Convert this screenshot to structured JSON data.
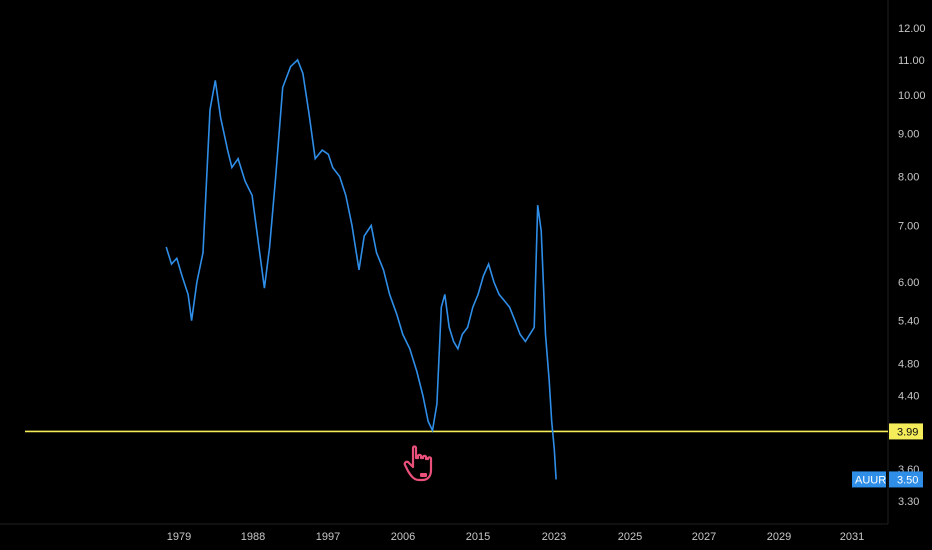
{
  "chart_data": {
    "type": "line",
    "scale": "log",
    "grid": false,
    "colors": {
      "background": "#000000",
      "series": "#2f8ee8",
      "level_line": "#f5ec5a",
      "level_badge": "#f5ec5a",
      "series_badge": "#2f8ee8",
      "axis_text": "#c7c7c7",
      "cursor_icon": "#e9507a"
    },
    "x_ticks": [
      "1979",
      "1988",
      "1997",
      "2006",
      "2015",
      "2023",
      "2025",
      "2027",
      "2029",
      "2031"
    ],
    "y_ticks": [
      "12.00",
      "11.00",
      "10.00",
      "9.00",
      "8.00",
      "7.00",
      "6.00",
      "5.40",
      "4.80",
      "4.40",
      "3.60",
      "3.30"
    ],
    "ylim": [
      3.2,
      12.5
    ],
    "horizontal_line": {
      "value": 3.99,
      "label": "3.99"
    },
    "series": [
      {
        "name": "AUUR",
        "last_value_label": "3.50",
        "points": [
          [
            "1978.0",
            6.6
          ],
          [
            "1978.6",
            6.3
          ],
          [
            "1979.2",
            6.4
          ],
          [
            "1979.8",
            6.1
          ],
          [
            "1980.5",
            5.8
          ],
          [
            "1980.9",
            5.4
          ],
          [
            "1981.5",
            6.0
          ],
          [
            "1982.2",
            6.5
          ],
          [
            "1983.0",
            9.6
          ],
          [
            "1983.6",
            10.4
          ],
          [
            "1984.2",
            9.4
          ],
          [
            "1985.0",
            8.6
          ],
          [
            "1985.5",
            8.2
          ],
          [
            "1986.2",
            8.4
          ],
          [
            "1987.0",
            7.9
          ],
          [
            "1987.8",
            7.6
          ],
          [
            "1988.5",
            6.7
          ],
          [
            "1989.2",
            5.9
          ],
          [
            "1989.8",
            6.6
          ],
          [
            "1990.5",
            8.0
          ],
          [
            "1991.3",
            10.2
          ],
          [
            "1992.2",
            10.8
          ],
          [
            "1993.0",
            11.0
          ],
          [
            "1993.6",
            10.6
          ],
          [
            "1994.3",
            9.5
          ],
          [
            "1995.0",
            8.4
          ],
          [
            "1995.8",
            8.6
          ],
          [
            "1996.5",
            8.5
          ],
          [
            "1997.0",
            8.2
          ],
          [
            "1997.8",
            8.0
          ],
          [
            "1998.5",
            7.6
          ],
          [
            "1999.2",
            7.0
          ],
          [
            "2000.0",
            6.2
          ],
          [
            "2000.6",
            6.8
          ],
          [
            "2001.4",
            7.0
          ],
          [
            "2002.0",
            6.5
          ],
          [
            "2002.8",
            6.2
          ],
          [
            "2003.5",
            5.8
          ],
          [
            "2004.3",
            5.5
          ],
          [
            "2005.0",
            5.2
          ],
          [
            "2005.8",
            5.0
          ],
          [
            "2006.6",
            4.7
          ],
          [
            "2007.3",
            4.4
          ],
          [
            "2007.9",
            4.1
          ],
          [
            "2008.4",
            4.0
          ],
          [
            "2008.9",
            4.3
          ],
          [
            "2009.4",
            5.6
          ],
          [
            "2009.8",
            5.8
          ],
          [
            "2010.3",
            5.3
          ],
          [
            "2010.8",
            5.1
          ],
          [
            "2011.3",
            5.0
          ],
          [
            "2011.8",
            5.2
          ],
          [
            "2012.4",
            5.3
          ],
          [
            "2013.0",
            5.6
          ],
          [
            "2013.6",
            5.8
          ],
          [
            "2014.2",
            6.1
          ],
          [
            "2014.8",
            6.3
          ],
          [
            "2015.4",
            6.0
          ],
          [
            "2016.0",
            5.8
          ],
          [
            "2016.6",
            5.7
          ],
          [
            "2017.2",
            5.6
          ],
          [
            "2017.8",
            5.4
          ],
          [
            "2018.4",
            5.2
          ],
          [
            "2019.0",
            5.1
          ],
          [
            "2019.5",
            5.2
          ],
          [
            "2020.0",
            5.3
          ],
          [
            "2020.4",
            7.4
          ],
          [
            "2020.8",
            6.9
          ],
          [
            "2021.3",
            5.2
          ],
          [
            "2021.7",
            4.6
          ],
          [
            "2022.0",
            4.1
          ],
          [
            "2022.3",
            3.8
          ],
          [
            "2022.5",
            3.5
          ]
        ]
      }
    ]
  }
}
